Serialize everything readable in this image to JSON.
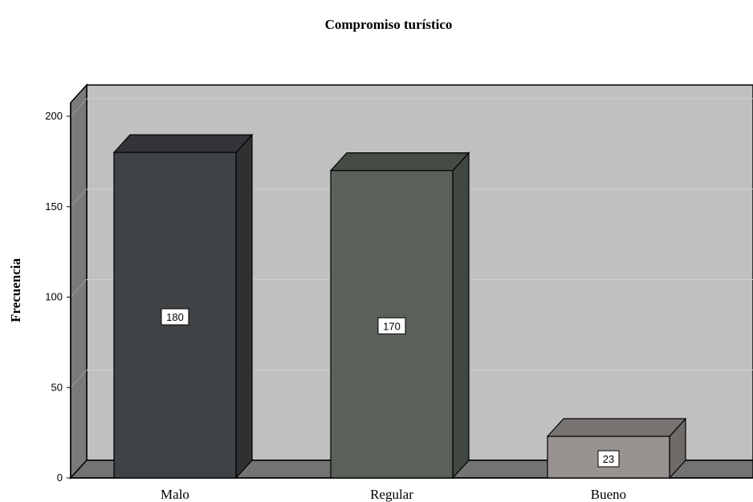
{
  "chart_data": {
    "type": "bar",
    "title": "Compromiso turístico",
    "xlabel": "",
    "ylabel": "Frecuencia",
    "categories": [
      "Malo",
      "Regular",
      "Bueno"
    ],
    "values": [
      180,
      170,
      23
    ],
    "data_labels": [
      "180",
      "170",
      "23"
    ],
    "yticks": [
      "0",
      "50",
      "100",
      "150",
      "200"
    ],
    "ylim": [
      0,
      200
    ],
    "grid": true,
    "style": "3d",
    "bar_colors": [
      "#404346",
      "#596159",
      "#989391"
    ],
    "background_color": "#c0c0c0",
    "floor_color": "#737373"
  }
}
